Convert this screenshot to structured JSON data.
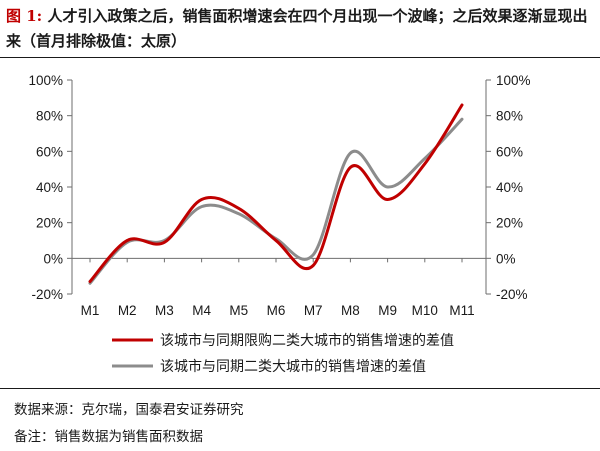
{
  "title": {
    "label": "图 1:",
    "text": "人才引入政策之后，销售面积增速会在四个月出现一个波峰；之后效果逐渐显现出来（首月排除极值：太原）"
  },
  "footer": {
    "source": "数据来源：克尔瑞，国泰君安证券研究",
    "note": "备注：销售数据为销售面积数据"
  },
  "colors": {
    "series1": "#c00000",
    "series2": "#8c8c8c",
    "axis": "#6e6e6e"
  },
  "chart_data": {
    "type": "line",
    "x": [
      "M1",
      "M2",
      "M3",
      "M4",
      "M5",
      "M6",
      "M7",
      "M8",
      "M9",
      "M10",
      "M11"
    ],
    "ylim": [
      -20,
      100
    ],
    "y_ticks": [
      "100%",
      "80%",
      "60%",
      "40%",
      "20%",
      "0%",
      "-20%"
    ],
    "y2_ticks": [
      "100%",
      "80%",
      "60%",
      "40%",
      "20%",
      "0%",
      "-20%"
    ],
    "grid": false,
    "legend_position": "bottom",
    "series": [
      {
        "name": "该城市与同期限购二类大城市的销售增速的差值",
        "values": [
          -13,
          10,
          9,
          33,
          28,
          10,
          -4,
          51,
          33,
          53,
          86
        ]
      },
      {
        "name": "该城市与同期二类大城市的销售增速的差值",
        "values": [
          -14,
          9,
          10,
          29,
          25,
          11,
          2,
          59,
          40,
          56,
          78
        ]
      }
    ]
  }
}
